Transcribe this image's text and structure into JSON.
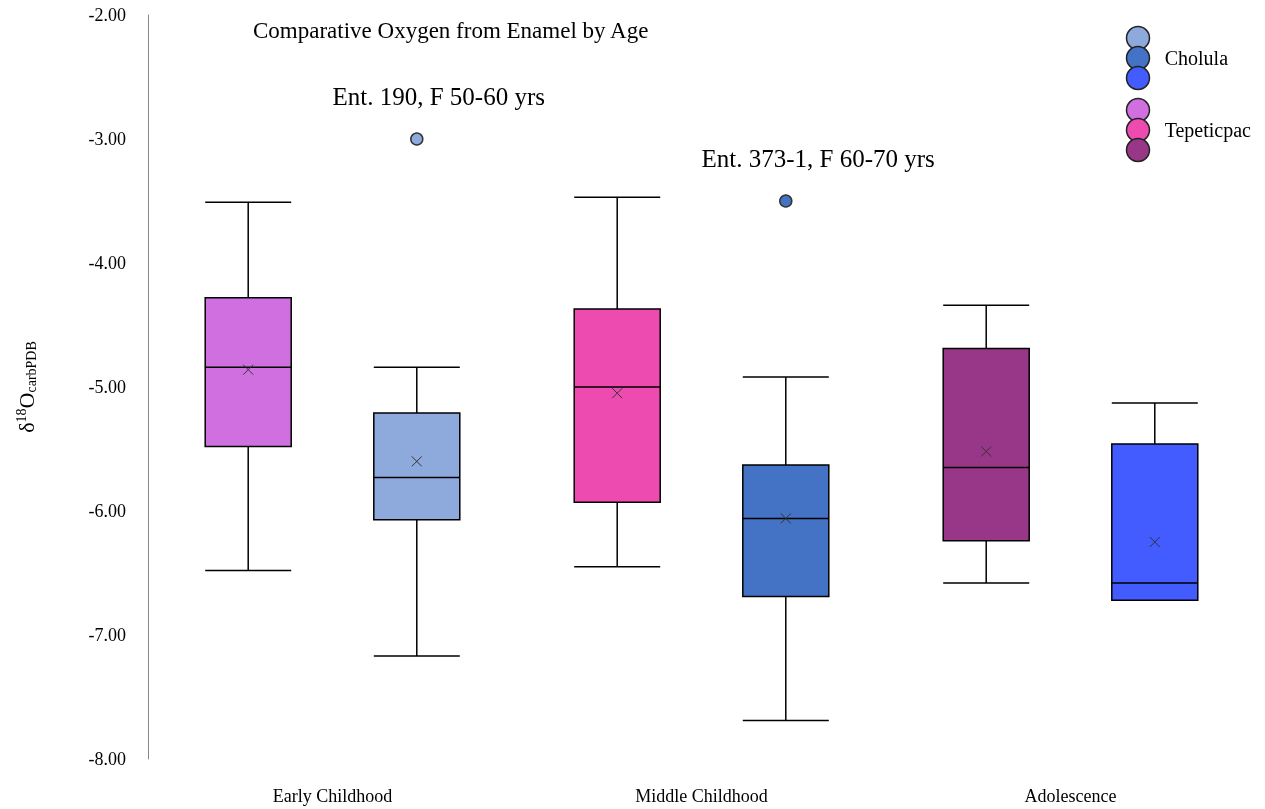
{
  "chart_data": {
    "type": "box",
    "title": "Comparative Oxygen from Enamel by Age",
    "ylabel": "δ$^{18}$O$_{carbPDB}$",
    "categories": [
      "Early Childhood",
      "Middle Childhood",
      "Adolescence"
    ],
    "series": [
      {
        "name": "Tepeticpac",
        "colors": [
          "#d070e0",
          "#ee4bb0",
          "#983787"
        ],
        "boxes": [
          {
            "low": -6.48,
            "q1": -5.48,
            "median": -4.84,
            "q3": -4.28,
            "high": -3.51,
            "mean": -4.86
          },
          {
            "low": -6.45,
            "q1": -5.93,
            "median": -5.0,
            "q3": -4.37,
            "high": -3.47,
            "mean": -5.05
          },
          {
            "low": -6.58,
            "q1": -6.24,
            "median": -5.65,
            "q3": -4.69,
            "high": -4.34,
            "mean": -5.52
          }
        ]
      },
      {
        "name": "Cholula",
        "colors": [
          "#8eaadc",
          "#4472c4",
          "#425cff"
        ],
        "boxes": [
          {
            "low": -7.17,
            "q1": -6.07,
            "median": -5.73,
            "q3": -5.21,
            "high": -4.84,
            "mean": -5.6,
            "outliers": [
              -3.0
            ]
          },
          {
            "low": -7.69,
            "q1": -6.69,
            "median": -6.06,
            "q3": -5.63,
            "high": -4.92,
            "mean": -6.06,
            "outliers": [
              -3.5
            ]
          },
          {
            "low": -6.72,
            "q1": -6.72,
            "median": -6.58,
            "q3": -5.46,
            "high": -5.13,
            "mean": -6.25
          }
        ]
      }
    ],
    "annotations": [
      "Ent. 190, F 50-60 yrs",
      "Ent. 373-1, F 60-70 yrs"
    ],
    "ylim": [
      -8,
      -2
    ],
    "yticks": [
      {
        "value": -2,
        "label": "-2.00"
      },
      {
        "value": -3,
        "label": "-3.00"
      },
      {
        "value": -4,
        "label": "-4.00"
      },
      {
        "value": -5,
        "label": "-5.00"
      },
      {
        "value": -6,
        "label": "-6.00"
      },
      {
        "value": -7,
        "label": "-7.00"
      },
      {
        "value": -8,
        "label": "-8.00"
      }
    ],
    "grid": false,
    "legend": "top right"
  }
}
